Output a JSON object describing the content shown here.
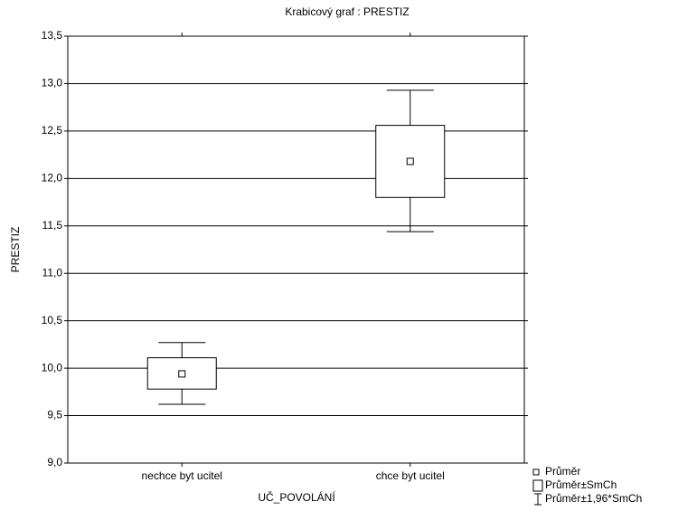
{
  "chart_data": {
    "type": "box",
    "title": "Krabicový graf :  PRESTIZ",
    "x_label": "UČ_POVOLÁNÍ",
    "y_label": "PRESTIZ",
    "categories": [
      "nechce byt ucitel",
      "chce byt ucitel"
    ],
    "boxes": [
      {
        "mean": 9.94,
        "box_low": 9.78,
        "box_high": 10.11,
        "whisker_low": 9.62,
        "whisker_high": 10.27
      },
      {
        "mean": 12.18,
        "box_low": 11.8,
        "box_high": 12.56,
        "whisker_low": 11.44,
        "whisker_high": 12.93
      }
    ],
    "ylim": [
      9.0,
      13.5
    ],
    "yticks": [
      {
        "value": 9.0,
        "label": "9,0"
      },
      {
        "value": 9.5,
        "label": "9,5"
      },
      {
        "value": 10.0,
        "label": "10,0"
      },
      {
        "value": 10.5,
        "label": "10,5"
      },
      {
        "value": 11.0,
        "label": "11,0"
      },
      {
        "value": 11.5,
        "label": "11,5"
      },
      {
        "value": 12.0,
        "label": "12,0"
      },
      {
        "value": 12.5,
        "label": "12,5"
      },
      {
        "value": 13.0,
        "label": "13,0"
      },
      {
        "value": 13.5,
        "label": "13,5"
      }
    ],
    "grid": true,
    "legend": [
      "Průměr",
      "Průměr±SmCh",
      "Průměr±1,96*SmCh"
    ]
  }
}
